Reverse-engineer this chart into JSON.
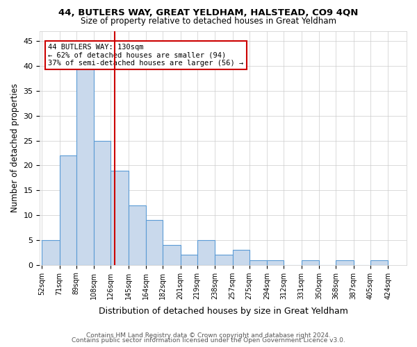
{
  "title1": "44, BUTLERS WAY, GREAT YELDHAM, HALSTEAD, CO9 4QN",
  "title2": "Size of property relative to detached houses in Great Yeldham",
  "xlabel": "Distribution of detached houses by size in Great Yeldham",
  "ylabel": "Number of detached properties",
  "bin_labels": [
    "52sqm",
    "71sqm",
    "89sqm",
    "108sqm",
    "126sqm",
    "145sqm",
    "164sqm",
    "182sqm",
    "201sqm",
    "219sqm",
    "238sqm",
    "257sqm",
    "275sqm",
    "294sqm",
    "312sqm",
    "331sqm",
    "350sqm",
    "368sqm",
    "387sqm",
    "405sqm",
    "424sqm"
  ],
  "bin_edges": [
    52,
    71,
    89,
    108,
    126,
    145,
    164,
    182,
    201,
    219,
    238,
    257,
    275,
    294,
    312,
    331,
    350,
    368,
    387,
    405,
    424
  ],
  "bar_heights": [
    5,
    22,
    41,
    25,
    19,
    12,
    9,
    4,
    2,
    5,
    2,
    3,
    1,
    1,
    0,
    1,
    0,
    1,
    0,
    1
  ],
  "bar_color": "#c9d9ec",
  "bar_edge_color": "#5b9bd5",
  "property_size": 130,
  "red_line_color": "#cc0000",
  "annotation_text": "44 BUTLERS WAY: 130sqm\n← 62% of detached houses are smaller (94)\n37% of semi-detached houses are larger (56) →",
  "annotation_box_color": "#cc0000",
  "ylim": [
    0,
    47
  ],
  "yticks": [
    0,
    5,
    10,
    15,
    20,
    25,
    30,
    35,
    40,
    45
  ],
  "footer1": "Contains HM Land Registry data © Crown copyright and database right 2024.",
  "footer2": "Contains public sector information licensed under the Open Government Licence v3.0.",
  "background_color": "#ffffff",
  "grid_color": "#cccccc"
}
